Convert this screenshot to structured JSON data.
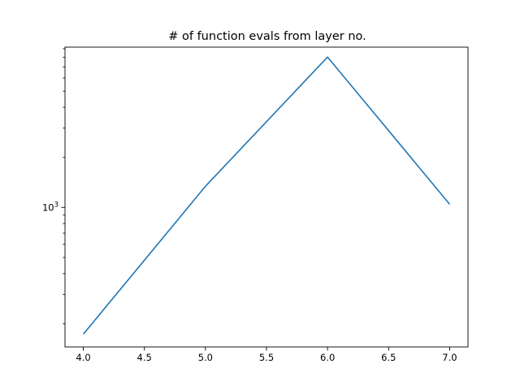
{
  "chart_data": {
    "type": "line",
    "title": "# of function evals from layer no.",
    "xlabel": "",
    "ylabel": "",
    "x": [
      4.0,
      5.0,
      6.0,
      7.0
    ],
    "series": [
      {
        "values": [
          173,
          1340,
          8020,
          1045
        ],
        "color": "#1f77b4"
      }
    ],
    "xlim": [
      3.85,
      7.15
    ],
    "ylim": [
      145,
      9200
    ],
    "yscale": "log",
    "xticks": [
      4.0,
      4.5,
      5.0,
      5.5,
      6.0,
      6.5,
      7.0
    ],
    "xtick_labels": [
      "4.0",
      "4.5",
      "5.0",
      "5.5",
      "6.0",
      "6.5",
      "7.0"
    ],
    "yticks_major": [
      1000
    ],
    "ytick_labels": [
      {
        "base": "10",
        "exp": "3"
      }
    ],
    "grid": false,
    "legend": "none"
  }
}
